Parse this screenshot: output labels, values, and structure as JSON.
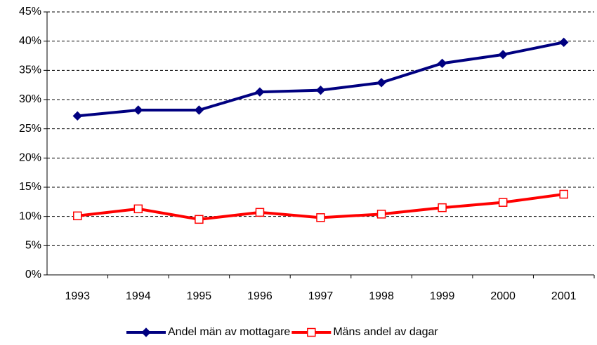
{
  "chart_data": {
    "type": "line",
    "categories": [
      "1993",
      "1994",
      "1995",
      "1996",
      "1997",
      "1998",
      "1999",
      "2000",
      "2001"
    ],
    "series": [
      {
        "name": "Andel män av mottagare",
        "color": "#000080",
        "marker": "diamond",
        "values": [
          27.2,
          28.2,
          28.2,
          31.3,
          31.6,
          32.9,
          36.2,
          37.7,
          39.8
        ]
      },
      {
        "name": "Mäns andel av dagar",
        "color": "#ff0000",
        "marker": "square-open",
        "values": [
          10.1,
          11.3,
          9.5,
          10.7,
          9.8,
          10.4,
          11.5,
          12.4,
          13.8
        ]
      }
    ],
    "ylim": [
      0,
      45
    ],
    "yticks": [
      {
        "value": 0,
        "label": "0%"
      },
      {
        "value": 5,
        "label": "5%"
      },
      {
        "value": 10,
        "label": "10%"
      },
      {
        "value": 15,
        "label": "15%"
      },
      {
        "value": 20,
        "label": "20%"
      },
      {
        "value": 25,
        "label": "25%"
      },
      {
        "value": 30,
        "label": "30%"
      },
      {
        "value": 35,
        "label": "35%"
      },
      {
        "value": 40,
        "label": "40%"
      },
      {
        "value": 45,
        "label": "45%"
      }
    ],
    "grid": true,
    "legend": "bottom"
  }
}
